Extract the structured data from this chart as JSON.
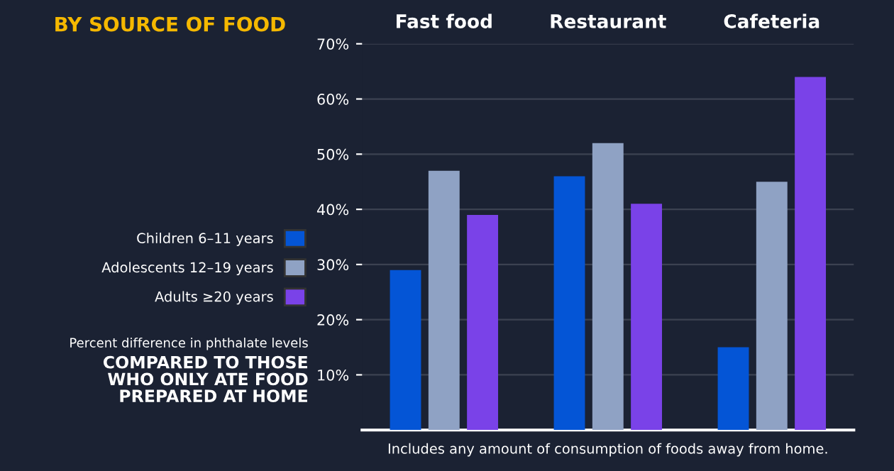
{
  "chart_data": {
    "type": "bar",
    "title": "BY SOURCE OF FOOD",
    "ylabel": "Percent difference in phthalate levels",
    "subtitle": "COMPARED TO THOSE\nWHO ONLY ATE FOOD\nPREPARED AT HOME",
    "annotations": [
      "Includes any amount of consumption of foods away from home."
    ],
    "categories": [
      "Fast food",
      "Restaurant",
      "Cafeteria"
    ],
    "series": [
      {
        "name": "Children 6–11 years",
        "color": "#0455d6",
        "values": [
          29,
          46,
          15
        ]
      },
      {
        "name": "Adolescents 12–19 years",
        "color": "#8fa2c4",
        "values": [
          47,
          52,
          45
        ]
      },
      {
        "name": "Adults ≥20 years",
        "color": "#7a42e8",
        "values": [
          39,
          41,
          64
        ]
      }
    ],
    "ylim": [
      0,
      70
    ],
    "yticks": [
      {
        "value": 10,
        "label": "10%"
      },
      {
        "value": 20,
        "label": "20%"
      },
      {
        "value": 30,
        "label": "30%"
      },
      {
        "value": 40,
        "label": "40%"
      },
      {
        "value": 50,
        "label": "50%"
      },
      {
        "value": 60,
        "label": "60%"
      },
      {
        "value": 70,
        "label": "70%"
      }
    ],
    "grid": "y",
    "legend": "left"
  }
}
